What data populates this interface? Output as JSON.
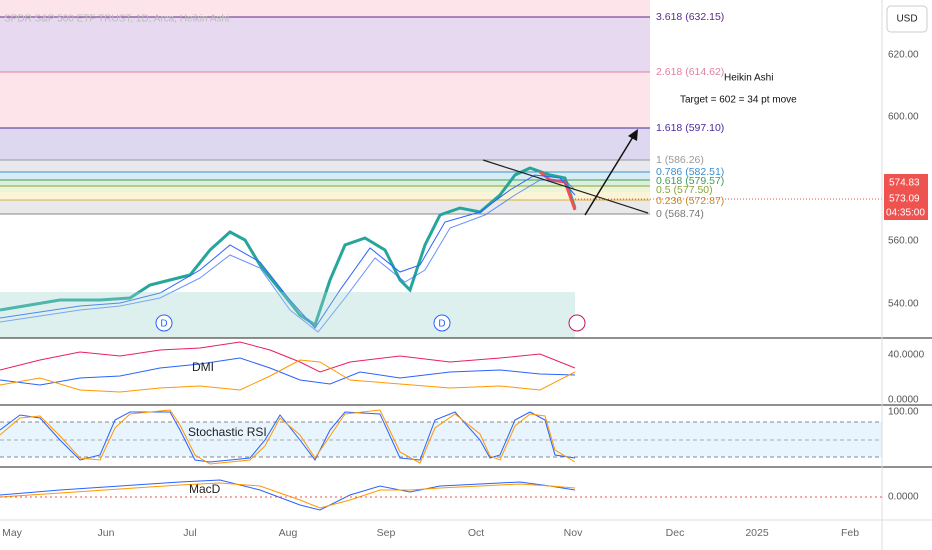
{
  "header": {
    "title": "SPDR S&P 500 ETF TRUST, 1D, Arca, Heikin Ashi",
    "currency": "USD"
  },
  "fib_levels": [
    "3.618 (632.15)",
    "2.618 (614.62)",
    "1.618 (597.10)",
    "1 (586.26)",
    "0.786 (582.51)",
    "0.618 (579.57)",
    "0.5 (577.50)",
    "0.236 (572.87)",
    "0 (568.74)"
  ],
  "annotation": {
    "title": "Heikin Ashi",
    "text": "Target = 602 = 34 pt move"
  },
  "price_axis": [
    "620.00",
    "600.00",
    "560.00",
    "540.00"
  ],
  "price_tags": [
    "574.83",
    "573.09",
    "04:35:00"
  ],
  "dividend_markers": [
    "D",
    "D"
  ],
  "indicators": [
    "DMI",
    "Stochastic RSI",
    "MacD"
  ],
  "indicator_axis": [
    "40.0000",
    "0.0000",
    "100.00",
    "0.0000"
  ],
  "time_axis": [
    "May",
    "Jun",
    "Jul",
    "Aug",
    "Sep",
    "Oct",
    "Nov",
    "Dec",
    "2025",
    "Feb"
  ]
}
